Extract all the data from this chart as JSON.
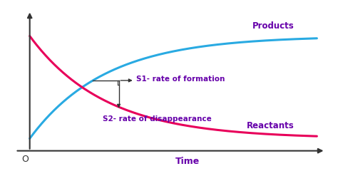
{
  "background_color": "#ffffff",
  "products_color": "#29aae2",
  "reactants_color": "#e8005a",
  "annotation_color": "#6600aa",
  "arrow_color": "#333333",
  "axis_color": "#333333",
  "xlabel": "Time",
  "origin_label": "O",
  "products_label": "Products",
  "reactants_label": "Reactants",
  "s1_label": "S1- rate of formation",
  "s2_label": "S2- rate of disappearance",
  "line_width": 2.2,
  "figsize": [
    4.74,
    2.47
  ],
  "dpi": 100,
  "xlim": [
    -0.8,
    10.5
  ],
  "ylim": [
    -0.28,
    1.3
  ],
  "x_axis_y": -0.12,
  "y_axis_x": 0.0,
  "decay": 0.38
}
